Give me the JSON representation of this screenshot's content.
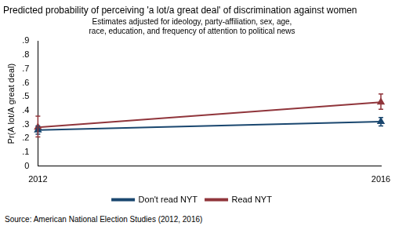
{
  "chart_data": {
    "type": "line",
    "title": "Predicted probability of perceiving 'a lot/a great deal' of discrimination against women",
    "subtitle": [
      "Estimates adjusted for ideology, party-affiliation, sex, age,",
      "race, education, and frequency of attention to political news"
    ],
    "y_label": "Pr(A lot/A great deal)",
    "note": "Source: American National Election Studies (2012, 2016)",
    "x": [
      2012,
      2016
    ],
    "xlim": [
      2012,
      2016
    ],
    "xticks": [
      2012,
      2016
    ],
    "ylim": [
      0,
      0.9
    ],
    "yticks": [
      0,
      {
        "value": 0.1,
        "label": ".1"
      },
      {
        "value": 0.2,
        "label": ".2"
      },
      {
        "value": 0.3,
        "label": ".3"
      },
      {
        "value": 0.4,
        "label": ".4"
      },
      {
        "value": 0.5,
        "label": ".5"
      },
      {
        "value": 0.6,
        "label": ".6"
      },
      {
        "value": 0.7,
        "label": ".7"
      },
      {
        "value": 0.8,
        "label": ".8"
      },
      {
        "value": 0.9,
        "label": ".9"
      }
    ],
    "grid": false,
    "legend": "bottom",
    "series": [
      {
        "name": "Don't read NYT",
        "color": "#1a476f",
        "marker": "triangle",
        "line_style": "solid",
        "values": [
          0.26,
          0.32
        ],
        "lower": [
          0.23,
          0.29
        ],
        "upper": [
          0.29,
          0.35
        ]
      },
      {
        "name": "Read NYT",
        "color": "#90353b",
        "marker": "triangle",
        "line_style": "solid",
        "values": [
          0.28,
          0.46
        ],
        "lower": [
          0.21,
          0.41
        ],
        "upper": [
          0.36,
          0.52
        ]
      }
    ]
  }
}
